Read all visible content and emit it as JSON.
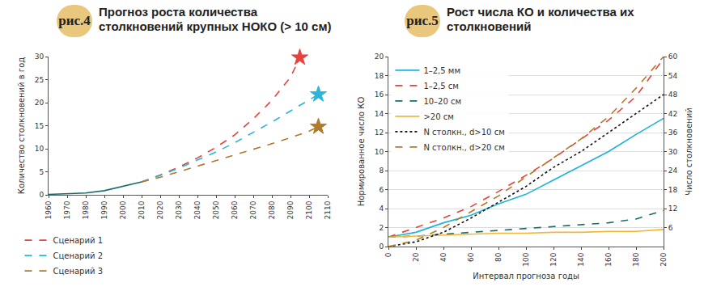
{
  "chart_data": [
    {
      "type": "line",
      "badge": "рис.4",
      "title": "Прогноз роста количества столкновений крупных НОКО (> 10 см)",
      "y_label": "Количество столкновений в год",
      "xlim": [
        1960,
        2110
      ],
      "xticks": [
        1960,
        1970,
        1980,
        1990,
        2000,
        2010,
        2020,
        2030,
        2040,
        2050,
        2060,
        2070,
        2080,
        2090,
        2100,
        2110
      ],
      "ylim": [
        0,
        30
      ],
      "yticks": [
        0,
        5,
        10,
        15,
        20,
        25,
        30
      ],
      "grid": false,
      "legend": "bottom",
      "series": [
        {
          "color": "#1a6b6b",
          "line_style": "solid",
          "x": [
            1960,
            1970,
            1980,
            1990,
            2000,
            2010
          ],
          "values": [
            0.1,
            0.2,
            0.4,
            0.9,
            1.8,
            2.8
          ]
        },
        {
          "name": "Сценарий 1",
          "color": "#e8423f",
          "line_style": "dashed",
          "marker": "star",
          "x": [
            2010,
            2020,
            2030,
            2040,
            2050,
            2060,
            2070,
            2080,
            2090,
            2095
          ],
          "values": [
            2.8,
            4.3,
            6.0,
            8.0,
            10.3,
            13.0,
            16.5,
            20.5,
            25.5,
            29.8
          ]
        },
        {
          "name": "Сценарий 2",
          "color": "#29b6d9",
          "line_style": "dashed",
          "marker": "star",
          "x": [
            2010,
            2020,
            2030,
            2040,
            2050,
            2060,
            2070,
            2080,
            2090,
            2100,
            2105
          ],
          "values": [
            2.8,
            4.2,
            5.8,
            7.5,
            9.3,
            11.3,
            13.5,
            15.8,
            18.2,
            20.5,
            21.8
          ]
        },
        {
          "name": "Сценарий 3",
          "color": "#b07a2a",
          "line_style": "dashed",
          "marker": "star",
          "x": [
            2010,
            2020,
            2030,
            2040,
            2050,
            2060,
            2070,
            2080,
            2090,
            2100,
            2105
          ],
          "values": [
            2.8,
            3.8,
            5.0,
            6.2,
            7.4,
            8.6,
            9.8,
            11.1,
            12.4,
            13.8,
            14.8
          ]
        }
      ]
    },
    {
      "type": "line",
      "badge": "рис.5",
      "title": "Рост числа КО и количества их столкновений",
      "x_label": "Интервал прогноза годы",
      "y_label": "Нормированное число КО",
      "y2_label": "Число столкновений",
      "xlim": [
        0,
        200
      ],
      "xticks": [
        0,
        20,
        40,
        60,
        80,
        100,
        120,
        140,
        160,
        180,
        200
      ],
      "ylim": [
        0,
        20
      ],
      "yticks": [
        0,
        2,
        4,
        6,
        8,
        10,
        12,
        14,
        16,
        18,
        20
      ],
      "y2lim": [
        0,
        60
      ],
      "y2ticks": [
        6,
        12,
        18,
        24,
        30,
        36,
        42,
        48,
        54,
        60
      ],
      "grid": true,
      "legend": "top left",
      "x": [
        0,
        20,
        40,
        60,
        80,
        100,
        120,
        140,
        160,
        180,
        200
      ],
      "series": [
        {
          "name": "1–2,5 мм",
          "color": "#1fb3d6",
          "line_style": "solid",
          "values": [
            1.0,
            1.5,
            2.5,
            3.3,
            4.5,
            5.5,
            7.0,
            8.5,
            10.0,
            11.8,
            13.5
          ]
        },
        {
          "name": "1–2,5 см",
          "color": "#e8423f",
          "line_style": "dashed",
          "values": [
            1.0,
            2.0,
            3.0,
            4.2,
            5.8,
            7.5,
            9.3,
            11.3,
            13.3,
            15.8,
            19.8
          ]
        },
        {
          "name": "10–20 см",
          "color": "#1a6b6b",
          "line_style": "dashed",
          "values": [
            1.0,
            1.1,
            1.3,
            1.5,
            1.7,
            1.9,
            2.1,
            2.3,
            2.5,
            2.9,
            3.8
          ]
        },
        {
          "name": ">20 см",
          "color": "#f2b632",
          "line_style": "solid",
          "values": [
            1.0,
            1.1,
            1.2,
            1.3,
            1.4,
            1.4,
            1.5,
            1.5,
            1.6,
            1.6,
            1.8
          ]
        },
        {
          "name": "N столкн., d>10 см",
          "color": "#111111",
          "line_style": "dotted",
          "axis": "y2",
          "values": [
            0,
            1.5,
            4.5,
            9,
            14,
            19,
            25,
            30,
            36,
            42,
            48
          ]
        },
        {
          "name": "N столкн., d>20 см",
          "color": "#b07a2a",
          "line_style": "dashed",
          "axis": "y2",
          "values": [
            0,
            2,
            6,
            11,
            16,
            22,
            28,
            34,
            41,
            50,
            60
          ]
        }
      ]
    }
  ]
}
